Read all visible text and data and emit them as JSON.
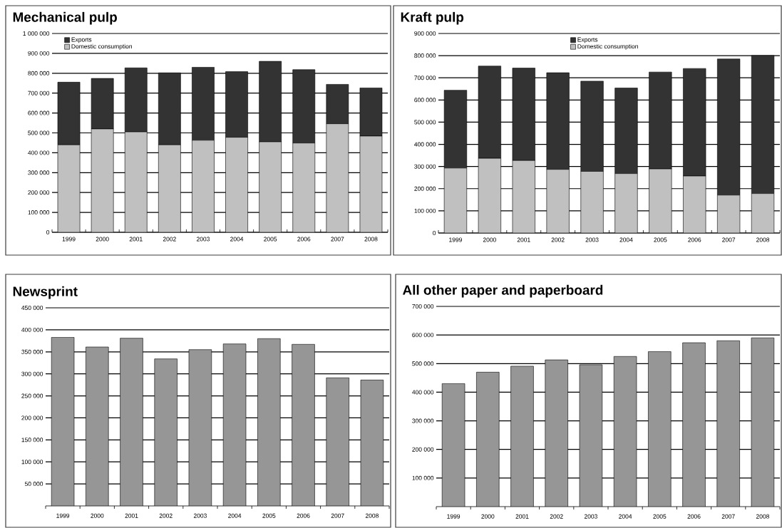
{
  "chart_data": [
    {
      "type": "bar",
      "title": "Mechanical pulp",
      "stacked": true,
      "grid": "y",
      "legend": "top left",
      "categories": [
        "1999",
        "2000",
        "2001",
        "2002",
        "2003",
        "2004",
        "2005",
        "2006",
        "2007",
        "2008"
      ],
      "series": [
        {
          "name": "Domestic consumption",
          "color": "#c0c0c0",
          "values": [
            440000,
            520000,
            505000,
            440000,
            463000,
            478000,
            455000,
            449000,
            546000,
            484000
          ]
        },
        {
          "name": "Exports",
          "color": "#333333",
          "values": [
            315000,
            254000,
            322000,
            362000,
            367000,
            330000,
            405000,
            369000,
            198000,
            242000
          ]
        }
      ],
      "ylim": [
        0,
        1000000
      ],
      "yticks": [
        {
          "value": 0,
          "label": "0"
        },
        {
          "value": 100000,
          "label": "100 000"
        },
        {
          "value": 200000,
          "label": "200 000"
        },
        {
          "value": 300000,
          "label": "300 000"
        },
        {
          "value": 400000,
          "label": "400 000"
        },
        {
          "value": 500000,
          "label": "500 000"
        },
        {
          "value": 600000,
          "label": "600 000"
        },
        {
          "value": 700000,
          "label": "700 000"
        },
        {
          "value": 800000,
          "label": "800 000"
        },
        {
          "value": 900000,
          "label": "900 000"
        },
        {
          "value": 1000000,
          "label": "1 000 000"
        }
      ]
    },
    {
      "type": "bar",
      "title": "Kraft pulp",
      "stacked": true,
      "grid": "y",
      "legend": "top",
      "categories": [
        "1999",
        "2000",
        "2001",
        "2002",
        "2003",
        "2004",
        "2005",
        "2006",
        "2007",
        "2008"
      ],
      "series": [
        {
          "name": "Domestic consumption",
          "color": "#c0c0c0",
          "values": [
            293000,
            337000,
            327000,
            287000,
            278000,
            268000,
            289000,
            257000,
            171000,
            178000
          ]
        },
        {
          "name": "Exports",
          "color": "#333333",
          "values": [
            351000,
            416000,
            417000,
            436000,
            407000,
            386000,
            437000,
            485000,
            614000,
            623000
          ]
        }
      ],
      "ylim": [
        0,
        900000
      ],
      "yticks": [
        {
          "value": 0,
          "label": "0"
        },
        {
          "value": 100000,
          "label": "100 000"
        },
        {
          "value": 200000,
          "label": "200 000"
        },
        {
          "value": 300000,
          "label": "300 000"
        },
        {
          "value": 400000,
          "label": "400 000"
        },
        {
          "value": 500000,
          "label": "500 000"
        },
        {
          "value": 600000,
          "label": "600 000"
        },
        {
          "value": 700000,
          "label": "700 000"
        },
        {
          "value": 800000,
          "label": "800 000"
        },
        {
          "value": 900000,
          "label": "900 000"
        }
      ]
    },
    {
      "type": "bar",
      "title": "Newsprint",
      "grid": "y",
      "color": "#969696",
      "categories": [
        "1999",
        "2000",
        "2001",
        "2002",
        "2003",
        "2004",
        "2005",
        "2006",
        "2007",
        "2008"
      ],
      "values": [
        383000,
        361000,
        381000,
        334000,
        355000,
        368000,
        380000,
        367000,
        291000,
        286000
      ],
      "ylim": [
        0,
        450000
      ],
      "yticks": [
        {
          "value": 50000,
          "label": "50 000"
        },
        {
          "value": 100000,
          "label": "100 000"
        },
        {
          "value": 150000,
          "label": "150 000"
        },
        {
          "value": 200000,
          "label": "200 000"
        },
        {
          "value": 250000,
          "label": "250 000"
        },
        {
          "value": 300000,
          "label": "300 000"
        },
        {
          "value": 350000,
          "label": "350 000"
        },
        {
          "value": 400000,
          "label": "400 000"
        },
        {
          "value": 450000,
          "label": "450 000"
        }
      ]
    },
    {
      "type": "bar",
      "title": "All other paper and paperboard",
      "grid": "y",
      "color": "#969696",
      "categories": [
        "1999",
        "2000",
        "2001",
        "2002",
        "2003",
        "2004",
        "2005",
        "2006",
        "2007",
        "2008"
      ],
      "values": [
        430000,
        470000,
        491000,
        513000,
        496000,
        525000,
        542000,
        573000,
        580000,
        590000
      ],
      "ylim": [
        0,
        700000
      ],
      "yticks": [
        {
          "value": 100000,
          "label": "100 000"
        },
        {
          "value": 200000,
          "label": "200 000"
        },
        {
          "value": 300000,
          "label": "300 000"
        },
        {
          "value": 400000,
          "label": "400 000"
        },
        {
          "value": 500000,
          "label": "500 000"
        },
        {
          "value": 600000,
          "label": "600 000"
        },
        {
          "value": 700000,
          "label": "700 000"
        }
      ]
    }
  ]
}
